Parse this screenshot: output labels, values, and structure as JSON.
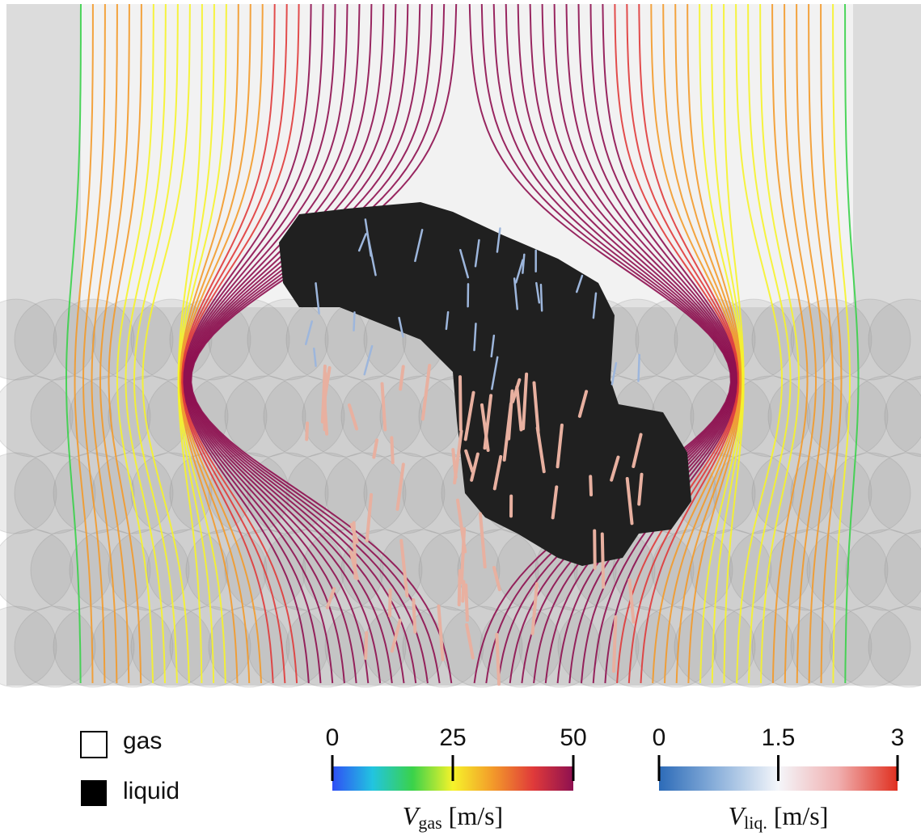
{
  "legend": [
    {
      "label": "gas",
      "fill": "#ffffff"
    },
    {
      "label": "liquid",
      "fill": "#000000"
    }
  ],
  "colorbars": [
    {
      "symbol": "V",
      "subscript": "gas",
      "unit": "[m/s]",
      "range": [
        0,
        50
      ],
      "ticks": [
        0,
        25,
        50
      ],
      "colors": [
        "#2f4ff5",
        "#22c4e0",
        "#3ad24a",
        "#f6f32a",
        "#f39a2a",
        "#e03a3a",
        "#8e1050"
      ]
    },
    {
      "symbol": "V",
      "subscript": "liq.",
      "unit": "[m/s]",
      "range": [
        0,
        3
      ],
      "ticks": [
        0,
        1.5,
        3
      ],
      "colors": [
        "#2c6bb8",
        "#8fb3dc",
        "#f4f6fa",
        "#f0b0b0",
        "#e03020"
      ]
    }
  ]
}
